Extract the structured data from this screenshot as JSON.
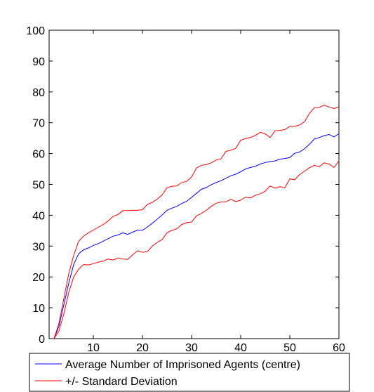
{
  "chart_data": {
    "type": "line",
    "title": "",
    "xlabel": "",
    "ylabel": "",
    "xlim": [
      1,
      60
    ],
    "ylim": [
      0,
      100
    ],
    "xticks": [
      10,
      20,
      30,
      40,
      50,
      60
    ],
    "yticks": [
      0,
      10,
      20,
      30,
      40,
      50,
      60,
      70,
      80,
      90,
      100
    ],
    "grid": false,
    "legend_position": "bottom, outside plot",
    "x": [
      2,
      3,
      4,
      5,
      6,
      7,
      8,
      9,
      10,
      11,
      12,
      13,
      14,
      15,
      16,
      17,
      18,
      19,
      20,
      21,
      22,
      23,
      24,
      25,
      26,
      27,
      28,
      29,
      30,
      31,
      32,
      33,
      34,
      35,
      36,
      37,
      38,
      39,
      40,
      41,
      42,
      43,
      44,
      45,
      46,
      47,
      48,
      49,
      50,
      51,
      52,
      53,
      54,
      55,
      56,
      57,
      58,
      59,
      60
    ],
    "series": [
      {
        "name": "Average Number of Imprisoned Agents (centre)",
        "color": "#0000ff",
        "values": [
          0,
          4,
          11,
          18,
          24,
          27.5,
          28.8,
          29.4,
          30.2,
          30.8,
          31.6,
          32.4,
          33.2,
          33.6,
          34.3,
          33.8,
          34.5,
          35.2,
          35.1,
          36.2,
          37.4,
          38.7,
          40.1,
          41.6,
          42.3,
          42.9,
          43.8,
          44.5,
          45.8,
          47.1,
          48.4,
          49.0,
          49.9,
          50.6,
          51.2,
          52.0,
          52.8,
          53.3,
          54.1,
          55.0,
          55.5,
          55.9,
          56.6,
          57.1,
          57.4,
          57.6,
          58.2,
          58.4,
          58.7,
          60.1,
          60.5,
          61.6,
          63.0,
          64.7,
          65.2,
          65.8,
          66.2,
          65.4,
          66.5
        ]
      },
      {
        "name": "+/- Standard Deviation",
        "color": "#ff0000",
        "values": [
          0,
          5,
          13,
          21,
          27,
          31.5,
          33.2,
          34.3,
          35.2,
          36.1,
          37.0,
          38.1,
          39.6,
          40.2,
          41.5,
          41.5,
          41.6,
          41.6,
          41.8,
          43.5,
          44.2,
          45.2,
          46.6,
          48.9,
          49.4,
          49.5,
          50.6,
          51.0,
          52.4,
          55.3,
          56.2,
          56.4,
          57.0,
          57.9,
          58.3,
          60.7,
          61.1,
          61.7,
          64.3,
          64.9,
          65.2,
          65.9,
          66.9,
          66.4,
          65.2,
          67.4,
          67.5,
          67.8,
          68.8,
          68.8,
          69.3,
          70.3,
          73.0,
          74.9,
          75.0,
          75.7,
          75.1,
          74.6,
          75.2
        ]
      },
      {
        "name": "",
        "color": "#ff0000",
        "values": [
          0,
          2.5,
          8,
          15,
          20,
          22.5,
          24.0,
          23.9,
          24.3,
          24.8,
          25.1,
          25.8,
          25.5,
          26.1,
          25.8,
          25.7,
          27.2,
          28.5,
          28.0,
          28.2,
          30.0,
          31.2,
          32.1,
          34.3,
          35.1,
          35.6,
          37.0,
          37.6,
          37.8,
          39.8,
          40.6,
          41.6,
          42.9,
          43.9,
          44.3,
          44.3,
          45.2,
          44.4,
          44.9,
          45.9,
          45.6,
          46.5,
          47.0,
          47.8,
          49.5,
          48.8,
          49.3,
          48.9,
          51.8,
          51.5,
          53.2,
          54.3,
          55.4,
          56.2,
          55.7,
          57.0,
          56.6,
          55.5,
          57.6
        ]
      }
    ]
  },
  "legend": {
    "items": [
      {
        "label": "Average Number of Imprisoned Agents (centre)",
        "color": "#0000ff"
      },
      {
        "label": "+/- Standard Deviation",
        "color": "#ff0000"
      }
    ]
  },
  "colors": {
    "axis": "#000000",
    "background": "#ffffff"
  }
}
